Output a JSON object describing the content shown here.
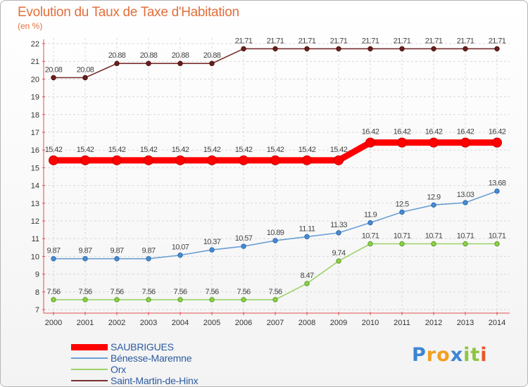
{
  "chart_data": {
    "type": "line",
    "title": "Evolution du Taux de Taxe d'Habitation",
    "ylabel": "(en %)",
    "xlabel": "",
    "ylim": [
      7,
      22
    ],
    "y_ticks": [
      7,
      8,
      9,
      10,
      11,
      12,
      13,
      14,
      15,
      16,
      17,
      18,
      19,
      20,
      21,
      22
    ],
    "grid": true,
    "legend_position": "bottom-left",
    "categories": [
      "2000",
      "2001",
      "2002",
      "2003",
      "2004",
      "2005",
      "2006",
      "2007",
      "2008",
      "2009",
      "2010",
      "2011",
      "2012",
      "2013",
      "2014"
    ],
    "series": [
      {
        "name": "SAUBRIGUES",
        "color": "#ff0000",
        "values": [
          15.42,
          15.42,
          15.42,
          15.42,
          15.42,
          15.42,
          15.42,
          15.42,
          15.42,
          15.42,
          16.42,
          16.42,
          16.42,
          16.42,
          16.42
        ]
      },
      {
        "name": "Bénesse-Maremne",
        "color": "#6a9fd4",
        "values": [
          9.87,
          9.87,
          9.87,
          9.87,
          10.07,
          10.37,
          10.57,
          10.89,
          11.11,
          11.33,
          11.9,
          12.5,
          12.9,
          13.03,
          13.68
        ]
      },
      {
        "name": "Orx",
        "color": "#9cd36a",
        "values": [
          7.56,
          7.56,
          7.56,
          7.56,
          7.56,
          7.56,
          7.56,
          7.56,
          8.47,
          9.74,
          10.71,
          10.71,
          10.71,
          10.71,
          10.71
        ]
      },
      {
        "name": "Saint-Martin-de-Hinx",
        "color": "#7a3030",
        "values": [
          20.08,
          20.08,
          20.88,
          20.88,
          20.88,
          20.88,
          21.71,
          21.71,
          21.71,
          21.71,
          21.71,
          21.71,
          21.71,
          21.71,
          21.71
        ]
      }
    ],
    "data_labels": [
      [
        "15.42",
        "15.42",
        "15.42",
        "15.42",
        "15.42",
        "15.42",
        "15.42",
        "15.42",
        "15.42",
        "15.42",
        "16.42",
        "16.42",
        "16.42",
        "16.42",
        "16.42"
      ],
      [
        "9.87",
        "9.87",
        "9.87",
        "9.87",
        "10.07",
        "10.37",
        "10.57",
        "10.89",
        "11.11",
        "11.33",
        "11.9",
        "12.5",
        "12.9",
        "13.03",
        "13.68"
      ],
      [
        "7.56",
        "7.56",
        "7.56",
        "7.56",
        "7.56",
        "7.56",
        "7.56",
        "7.56",
        "8.47",
        "9.74",
        "10.71",
        "10.71",
        "10.71",
        "10.71",
        "10.71"
      ],
      [
        "20.08",
        "20.08",
        "20.88",
        "20.88",
        "20.88",
        "20.88",
        "21.71",
        "21.71",
        "21.71",
        "21.71",
        "21.71",
        "21.71",
        "21.71",
        "21.71",
        "21.71"
      ]
    ]
  },
  "logo": {
    "letters": [
      "P",
      "r",
      "o",
      "x",
      "i",
      "t",
      "i"
    ],
    "colors": [
      "#3b86d4",
      "#f0a020",
      "#f0a020",
      "#3b86d4",
      "#8cc63f",
      "#8cc63f",
      "#e8562a"
    ]
  }
}
